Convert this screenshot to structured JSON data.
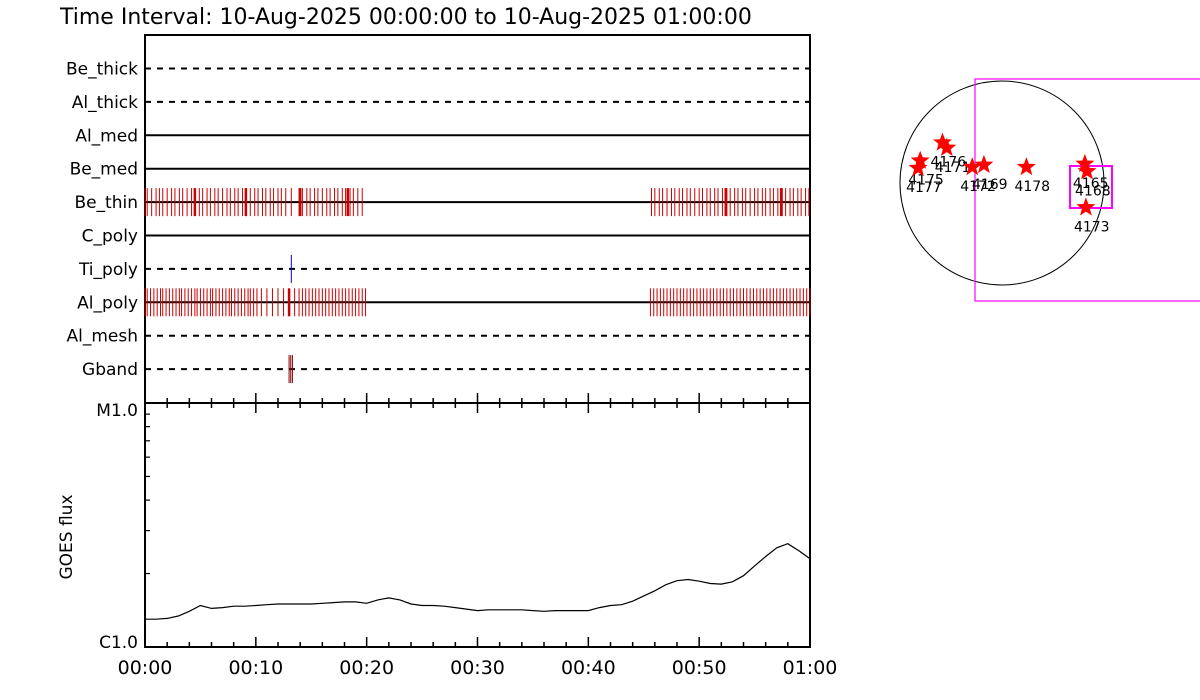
{
  "title": "Time Interval: 10-Aug-2025 00:00:00 to 10-Aug-2025 01:00:00",
  "chart_data": [
    {
      "type": "timeline",
      "x_range_minutes": [
        0,
        60
      ],
      "channels": [
        {
          "name": "Be_thick",
          "baseline": "dashed",
          "events": []
        },
        {
          "name": "Al_thick",
          "baseline": "dashed",
          "events": []
        },
        {
          "name": "Al_med",
          "baseline": "solid",
          "events": []
        },
        {
          "name": "Be_med",
          "baseline": "solid",
          "events": []
        },
        {
          "name": "Be_thin",
          "baseline": "solid",
          "color": "#cc0000",
          "events": [
            0.0,
            0.2,
            0.6,
            1.0,
            1.3,
            1.6,
            2.0,
            2.4,
            2.7,
            3.1,
            3.4,
            3.8,
            4.2,
            4.5,
            4.9,
            5.2,
            5.6,
            5.9,
            6.3,
            6.6,
            7.0,
            7.4,
            7.7,
            8.1,
            8.4,
            8.8,
            9.1,
            9.5,
            9.9,
            10.2,
            10.6,
            10.9,
            11.3,
            11.6,
            12.0,
            12.3,
            12.7,
            13.2,
            13.9,
            14.2,
            14.6,
            14.9,
            15.3,
            15.6,
            16.0,
            16.4,
            16.7,
            17.1,
            17.4,
            17.8,
            18.1,
            18.5,
            18.8,
            19.2,
            19.6,
            45.7,
            46.0,
            46.4,
            46.7,
            47.1,
            47.5,
            47.8,
            48.2,
            48.5,
            48.9,
            49.2,
            49.6,
            50.0,
            50.3,
            50.7,
            51.0,
            51.4,
            51.7,
            52.1,
            52.5,
            52.8,
            53.2,
            53.5,
            53.9,
            54.2,
            54.6,
            55.0,
            55.3,
            55.7,
            56.0,
            56.4,
            56.7,
            57.1,
            57.5,
            57.8,
            58.2,
            58.5,
            58.9,
            59.2,
            59.6,
            59.9
          ],
          "heavy_events": [
            4.5,
            9.1,
            14.0,
            18.3,
            52.4,
            57.4
          ]
        },
        {
          "name": "C_poly",
          "baseline": "solid",
          "events": []
        },
        {
          "name": "Ti_poly",
          "baseline": "dashed",
          "color": "#0000cc",
          "events": [
            13.2
          ]
        },
        {
          "name": "Al_poly",
          "baseline": "solid",
          "color": "#cc0000",
          "events": [
            0.0,
            0.2,
            0.5,
            0.8,
            1.1,
            1.4,
            1.6,
            1.9,
            2.2,
            2.5,
            2.8,
            3.1,
            3.3,
            3.6,
            3.9,
            4.2,
            4.5,
            4.7,
            5.0,
            5.3,
            5.6,
            5.9,
            6.1,
            6.4,
            6.7,
            7.0,
            7.3,
            7.6,
            7.8,
            8.1,
            8.4,
            8.7,
            9.0,
            9.3,
            9.5,
            9.8,
            10.1,
            10.5,
            11.0,
            11.5,
            12.0,
            12.5,
            13.5,
            13.9,
            14.2,
            14.5,
            14.8,
            15.1,
            15.4,
            15.7,
            16.0,
            16.3,
            16.6,
            16.9,
            17.2,
            17.5,
            17.8,
            18.1,
            18.4,
            18.7,
            19.0,
            19.3,
            19.6,
            19.9,
            45.6,
            45.9,
            46.2,
            46.5,
            46.8,
            47.1,
            47.4,
            47.7,
            48.0,
            48.3,
            48.6,
            48.9,
            49.2,
            49.5,
            49.8,
            50.1,
            50.4,
            50.7,
            51.0,
            51.3,
            51.6,
            51.9,
            52.2,
            52.5,
            52.8,
            53.1,
            53.4,
            53.7,
            54.0,
            54.3,
            54.6,
            54.9,
            55.2,
            55.5,
            55.8,
            56.1,
            56.4,
            56.7,
            57.0,
            57.3,
            57.6,
            57.9,
            58.2,
            58.5,
            58.8,
            59.1,
            59.4,
            59.7,
            60.0
          ],
          "heavy_events": [
            13.0
          ]
        },
        {
          "name": "Al_mesh",
          "baseline": "dashed",
          "events": []
        },
        {
          "name": "Gband",
          "baseline": "dashed",
          "color": "#880000",
          "events": [
            13.0,
            13.15,
            13.3
          ]
        }
      ]
    },
    {
      "type": "line",
      "ylabel": "GOES flux",
      "ytick_labels": [
        "M1.0",
        "C1.0"
      ],
      "y_scale": "log",
      "ylim": [
        1e-06,
        1e-05
      ],
      "x_tick_labels": [
        "00:00",
        "00:10",
        "00:20",
        "00:30",
        "00:40",
        "00:50",
        "01:00"
      ],
      "x_range_minutes": [
        0,
        60
      ],
      "series": [
        {
          "x": [
            0,
            1,
            2,
            3,
            4,
            5,
            6,
            7,
            8,
            9,
            10,
            11,
            12,
            13,
            14,
            15,
            16,
            17,
            18,
            19,
            20,
            21,
            22,
            23,
            24,
            25,
            26,
            27,
            28,
            29,
            30,
            31,
            32,
            33,
            34,
            35,
            36,
            37,
            38,
            39,
            40,
            41,
            42,
            43,
            44,
            45,
            46,
            47,
            48,
            49,
            50,
            51,
            52,
            53,
            54,
            55,
            56,
            57,
            58,
            59,
            60
          ],
          "y": [
            1.3e-06,
            1.3e-06,
            1.31e-06,
            1.34e-06,
            1.4e-06,
            1.48e-06,
            1.44e-06,
            1.45e-06,
            1.47e-06,
            1.47e-06,
            1.48e-06,
            1.49e-06,
            1.5e-06,
            1.5e-06,
            1.5e-06,
            1.5e-06,
            1.51e-06,
            1.52e-06,
            1.53e-06,
            1.53e-06,
            1.51e-06,
            1.56e-06,
            1.59e-06,
            1.56e-06,
            1.5e-06,
            1.48e-06,
            1.48e-06,
            1.47e-06,
            1.45e-06,
            1.43e-06,
            1.41e-06,
            1.42e-06,
            1.42e-06,
            1.42e-06,
            1.42e-06,
            1.41e-06,
            1.4e-06,
            1.41e-06,
            1.41e-06,
            1.41e-06,
            1.41e-06,
            1.45e-06,
            1.48e-06,
            1.49e-06,
            1.54e-06,
            1.62e-06,
            1.7e-06,
            1.8e-06,
            1.87e-06,
            1.89e-06,
            1.86e-06,
            1.82e-06,
            1.81e-06,
            1.85e-06,
            1.96e-06,
            2.15e-06,
            2.35e-06,
            2.55e-06,
            2.65e-06,
            2.48e-06,
            2.3e-06
          ]
        }
      ]
    },
    {
      "type": "scatter",
      "description_free": true,
      "solar_disk": true,
      "points": [
        {
          "label": "4176",
          "x": -560,
          "y": 380
        },
        {
          "label": "4171",
          "x": -520,
          "y": 330
        },
        {
          "label": "4175",
          "x": -770,
          "y": 210
        },
        {
          "label": "4177",
          "x": -790,
          "y": 140
        },
        {
          "label": "4172",
          "x": -280,
          "y": 150
        },
        {
          "label": "4169",
          "x": -170,
          "y": 170
        },
        {
          "label": "4178",
          "x": 230,
          "y": 150
        },
        {
          "label": "4165",
          "x": 780,
          "y": 180
        },
        {
          "label": "4168",
          "x": 800,
          "y": 110
        },
        {
          "label": "4173",
          "x": 790,
          "y": -230
        }
      ]
    }
  ]
}
